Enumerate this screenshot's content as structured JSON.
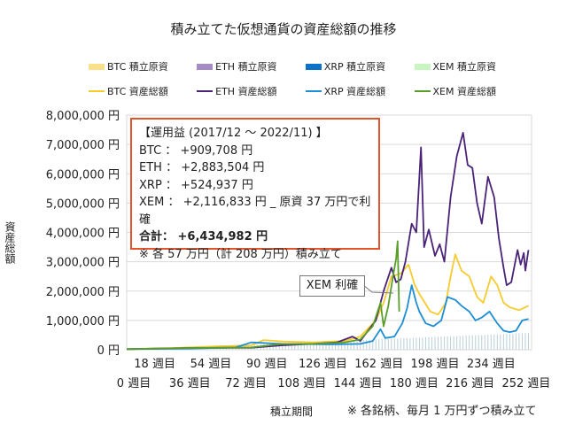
{
  "chart_data": {
    "type": "line",
    "title": "積み立てた仮想通貨の資産総額の推移",
    "xlabel": "積立期間",
    "ylabel": "資産総額",
    "xlim": [
      0,
      260
    ],
    "ylim": [
      0,
      8000000
    ],
    "y_ticks": [
      "0 円",
      "1,000,000 円",
      "2,000,000 円",
      "3,000,000 円",
      "4,000,000 円",
      "5,000,000 円",
      "6,000,000 円",
      "7,000,000 円",
      "8,000,000 円"
    ],
    "x_ticks_upper": [
      "18 週目",
      "54 週目",
      "90 週目",
      "126 週目",
      "162 週目",
      "198 週目",
      "234 週目"
    ],
    "x_ticks_lower": [
      "0 週目",
      "36 週目",
      "72 週目",
      "108 週目",
      "144 週目",
      "180 週目",
      "216 週目",
      "252 週目"
    ],
    "grid": "horizontal",
    "legend_placement": "top",
    "legend": [
      {
        "name": "BTC  積立原資",
        "kind": "bar",
        "color": "#fbe08c"
      },
      {
        "name": "ETH  積立原資",
        "kind": "bar",
        "color": "#a58cc4"
      },
      {
        "name": "XRP  積立原資",
        "kind": "bar",
        "color": "#0a72c8"
      },
      {
        "name": "XEM  積立原資",
        "kind": "bar",
        "color": "#c9f5c0"
      },
      {
        "name": "BTC  資産総額",
        "kind": "line",
        "color": "#f7cb2d"
      },
      {
        "name": "ETH  資産総額",
        "kind": "line",
        "color": "#4a2378"
      },
      {
        "name": "XRP  資産総額",
        "kind": "line",
        "color": "#1d8ed4"
      },
      {
        "name": "XEM  資産総額",
        "kind": "line",
        "color": "#5a9e2a"
      }
    ],
    "principal": {
      "color": "#b9cfd9",
      "points": [
        [
          0,
          0
        ],
        [
          258,
          570000
        ]
      ]
    },
    "series": [
      {
        "name": "BTC  資産総額",
        "color": "#f7cb2d",
        "points": [
          [
            0,
            20000
          ],
          [
            30,
            60000
          ],
          [
            60,
            120000
          ],
          [
            80,
            150000
          ],
          [
            88,
            330000
          ],
          [
            100,
            280000
          ],
          [
            120,
            250000
          ],
          [
            140,
            300000
          ],
          [
            150,
            450000
          ],
          [
            160,
            1000000
          ],
          [
            165,
            1600000
          ],
          [
            170,
            2500000
          ],
          [
            176,
            2600000
          ],
          [
            181,
            2900000
          ],
          [
            185,
            2200000
          ],
          [
            188,
            1900000
          ],
          [
            195,
            1300000
          ],
          [
            200,
            1200000
          ],
          [
            205,
            1600000
          ],
          [
            208,
            2500000
          ],
          [
            211,
            3250000
          ],
          [
            215,
            2700000
          ],
          [
            220,
            2500000
          ],
          [
            225,
            1800000
          ],
          [
            229,
            1600000
          ],
          [
            234,
            2500000
          ],
          [
            238,
            2200000
          ],
          [
            242,
            1600000
          ],
          [
            246,
            1450000
          ],
          [
            252,
            1350000
          ],
          [
            258,
            1500000
          ]
        ]
      },
      {
        "name": "ETH  資産総額",
        "color": "#4a2378",
        "points": [
          [
            0,
            20000
          ],
          [
            40,
            60000
          ],
          [
            80,
            70000
          ],
          [
            100,
            150000
          ],
          [
            120,
            200000
          ],
          [
            135,
            250000
          ],
          [
            145,
            450000
          ],
          [
            150,
            300000
          ],
          [
            160,
            1000000
          ],
          [
            165,
            2000000
          ],
          [
            170,
            2800000
          ],
          [
            173,
            2300000
          ],
          [
            176,
            2400000
          ],
          [
            179,
            3000000
          ],
          [
            183,
            4300000
          ],
          [
            186,
            4000000
          ],
          [
            189,
            6900000
          ],
          [
            191,
            3500000
          ],
          [
            194,
            4100000
          ],
          [
            198,
            3200000
          ],
          [
            201,
            3600000
          ],
          [
            204,
            3000000
          ],
          [
            208,
            5200000
          ],
          [
            212,
            6600000
          ],
          [
            216,
            7400000
          ],
          [
            219,
            6300000
          ],
          [
            222,
            6200000
          ],
          [
            225,
            5000000
          ],
          [
            228,
            4300000
          ],
          [
            232,
            5900000
          ],
          [
            236,
            5200000
          ],
          [
            239,
            3800000
          ],
          [
            242,
            2800000
          ],
          [
            244,
            2200000
          ],
          [
            247,
            2300000
          ],
          [
            251,
            3400000
          ],
          [
            253,
            2900000
          ],
          [
            255,
            3300000
          ],
          [
            256,
            2700000
          ],
          [
            258,
            3400000
          ]
        ]
      },
      {
        "name": "XRP  資産総額",
        "color": "#1d8ed4",
        "points": [
          [
            0,
            20000
          ],
          [
            40,
            40000
          ],
          [
            70,
            80000
          ],
          [
            80,
            250000
          ],
          [
            100,
            200000
          ],
          [
            130,
            180000
          ],
          [
            150,
            200000
          ],
          [
            158,
            300000
          ],
          [
            163,
            700000
          ],
          [
            166,
            400000
          ],
          [
            172,
            450000
          ],
          [
            177,
            900000
          ],
          [
            180,
            1400000
          ],
          [
            183,
            2200000
          ],
          [
            186,
            1600000
          ],
          [
            188,
            1300000
          ],
          [
            192,
            900000
          ],
          [
            197,
            800000
          ],
          [
            202,
            1000000
          ],
          [
            206,
            1800000
          ],
          [
            211,
            1700000
          ],
          [
            215,
            1500000
          ],
          [
            220,
            1300000
          ],
          [
            224,
            1000000
          ],
          [
            228,
            1100000
          ],
          [
            233,
            1300000
          ],
          [
            238,
            900000
          ],
          [
            242,
            650000
          ],
          [
            246,
            600000
          ],
          [
            250,
            650000
          ],
          [
            254,
            1000000
          ],
          [
            258,
            1050000
          ]
        ]
      },
      {
        "name": "XEM  資産総額",
        "color": "#5a9e2a",
        "points": [
          [
            0,
            20000
          ],
          [
            40,
            60000
          ],
          [
            80,
            80000
          ],
          [
            100,
            200000
          ],
          [
            120,
            200000
          ],
          [
            140,
            250000
          ],
          [
            150,
            350000
          ],
          [
            158,
            800000
          ],
          [
            163,
            1600000
          ],
          [
            165,
            800000
          ],
          [
            168,
            1500000
          ],
          [
            171,
            2500000
          ],
          [
            173,
            3100000
          ],
          [
            174,
            3700000
          ],
          [
            175,
            1300000
          ]
        ]
      }
    ]
  },
  "info": {
    "heading": "【運用益 (2017/12 ～ 2022/11) 】",
    "lines": [
      "BTC ： +909,708 円",
      "ETH ： +2,883,504 円",
      "XRP ： +524,937 円",
      "XEM ： +2,116,833 円 _ 原資 37 万円で利確"
    ],
    "total": "合計： +6,434,982 円",
    "note": "※ 各 57 万円（計 208 万円）積み立て"
  },
  "callout": "XEM 利確",
  "footnote": "※ 各銘柄、毎月 1 万円ずつ積み立て"
}
